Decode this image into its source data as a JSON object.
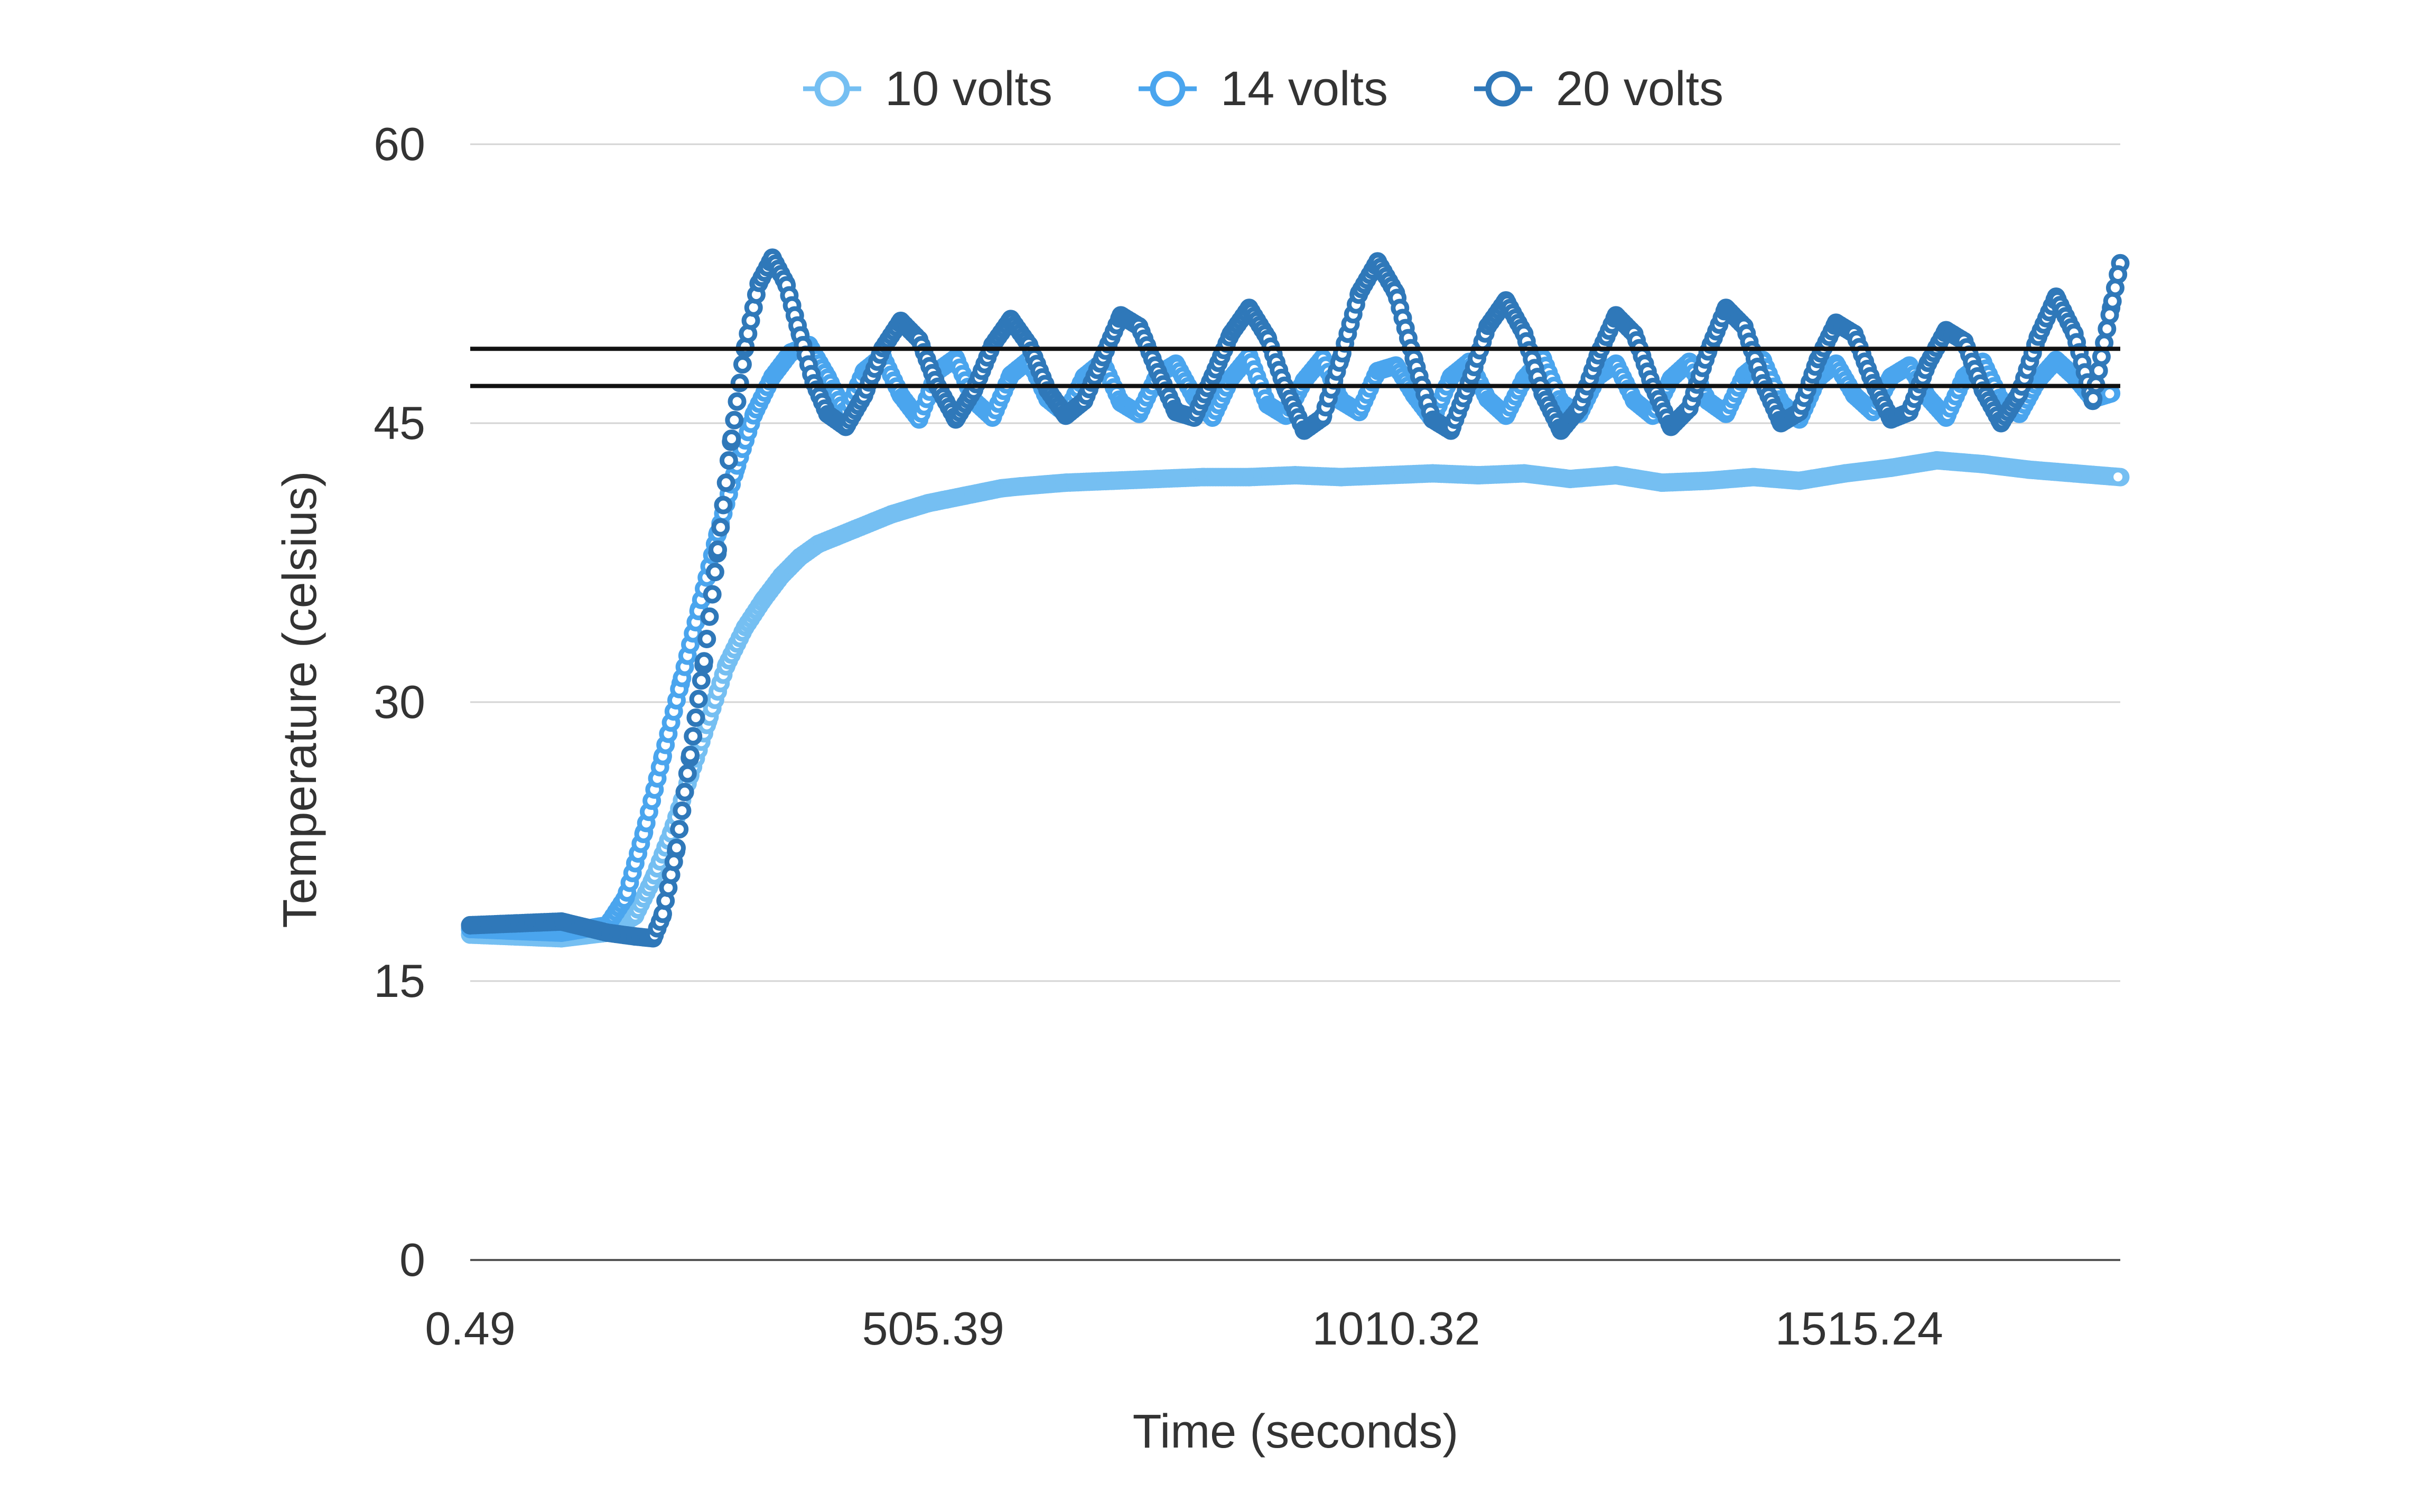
{
  "chart_data": {
    "type": "scatter",
    "title": "",
    "xlabel": "Time (seconds)",
    "ylabel": "Temperature (celsius)",
    "xlim": [
      0.49,
      1800
    ],
    "ylim": [
      0,
      60
    ],
    "y_ticks": [
      "0",
      "15",
      "30",
      "45",
      "60"
    ],
    "x_ticks": [
      {
        "label": "0.49",
        "value": 0.49
      },
      {
        "label": "505.39",
        "value": 505.39
      },
      {
        "label": "1010.32",
        "value": 1010.32
      },
      {
        "label": "1515.24",
        "value": 1515.24
      }
    ],
    "grid": true,
    "legend_position": "top",
    "reference_lines": [
      47,
      49
    ],
    "series": [
      {
        "name": "10 volts",
        "color": "#75bff2",
        "points": [
          [
            0.49,
            17.5
          ],
          [
            50,
            17.4
          ],
          [
            100,
            17.3
          ],
          [
            150,
            17.6
          ],
          [
            180,
            18.5
          ],
          [
            200,
            20.5
          ],
          [
            220,
            23
          ],
          [
            240,
            26
          ],
          [
            260,
            29
          ],
          [
            280,
            32
          ],
          [
            300,
            34
          ],
          [
            320,
            35.5
          ],
          [
            340,
            36.8
          ],
          [
            360,
            37.8
          ],
          [
            380,
            38.5
          ],
          [
            400,
            38.9
          ],
          [
            420,
            39.3
          ],
          [
            440,
            39.7
          ],
          [
            460,
            40.1
          ],
          [
            480,
            40.4
          ],
          [
            500,
            40.7
          ],
          [
            520,
            40.9
          ],
          [
            540,
            41.1
          ],
          [
            560,
            41.3
          ],
          [
            580,
            41.5
          ],
          [
            600,
            41.6
          ],
          [
            650,
            41.8
          ],
          [
            700,
            41.9
          ],
          [
            750,
            42
          ],
          [
            800,
            42.1
          ],
          [
            850,
            42.1
          ],
          [
            900,
            42.2
          ],
          [
            950,
            42.1
          ],
          [
            1000,
            42.2
          ],
          [
            1050,
            42.3
          ],
          [
            1100,
            42.2
          ],
          [
            1150,
            42.3
          ],
          [
            1200,
            42
          ],
          [
            1250,
            42.2
          ],
          [
            1300,
            41.8
          ],
          [
            1350,
            41.9
          ],
          [
            1400,
            42.1
          ],
          [
            1450,
            41.9
          ],
          [
            1500,
            42.3
          ],
          [
            1550,
            42.6
          ],
          [
            1600,
            43
          ],
          [
            1650,
            42.8
          ],
          [
            1700,
            42.5
          ],
          [
            1750,
            42.3
          ],
          [
            1800,
            42.1
          ]
        ]
      },
      {
        "name": "14 volts",
        "color": "#4aa5ee",
        "points": [
          [
            0.49,
            17.8
          ],
          [
            50,
            17.7
          ],
          [
            100,
            17.6
          ],
          [
            150,
            18
          ],
          [
            170,
            19.5
          ],
          [
            190,
            23
          ],
          [
            210,
            27
          ],
          [
            230,
            31
          ],
          [
            250,
            35
          ],
          [
            270,
            39
          ],
          [
            290,
            42.5
          ],
          [
            310,
            45.5
          ],
          [
            330,
            47.5
          ],
          [
            350,
            48.8
          ],
          [
            370,
            49.2
          ],
          [
            390,
            47.5
          ],
          [
            410,
            45.5
          ],
          [
            430,
            47.8
          ],
          [
            450,
            48.6
          ],
          [
            470,
            46.5
          ],
          [
            490,
            45.2
          ],
          [
            510,
            47.8
          ],
          [
            530,
            48.5
          ],
          [
            550,
            46.2
          ],
          [
            570,
            45.3
          ],
          [
            590,
            47.6
          ],
          [
            610,
            48.4
          ],
          [
            630,
            46.3
          ],
          [
            650,
            45.5
          ],
          [
            670,
            47.5
          ],
          [
            690,
            48.3
          ],
          [
            710,
            46.1
          ],
          [
            730,
            45.5
          ],
          [
            750,
            47.6
          ],
          [
            770,
            48.2
          ],
          [
            790,
            46.4
          ],
          [
            810,
            45.3
          ],
          [
            830,
            47.4
          ],
          [
            850,
            48.6
          ],
          [
            870,
            46
          ],
          [
            890,
            45.4
          ],
          [
            910,
            47.3
          ],
          [
            930,
            48.5
          ],
          [
            950,
            46.2
          ],
          [
            970,
            45.6
          ],
          [
            990,
            47.8
          ],
          [
            1010,
            48.1
          ],
          [
            1030,
            46.5
          ],
          [
            1050,
            45.2
          ],
          [
            1070,
            47.5
          ],
          [
            1090,
            48.3
          ],
          [
            1110,
            46.3
          ],
          [
            1130,
            45.4
          ],
          [
            1150,
            47.4
          ],
          [
            1170,
            48.5
          ],
          [
            1190,
            46.1
          ],
          [
            1210,
            45.5
          ],
          [
            1230,
            47.5
          ],
          [
            1250,
            48.2
          ],
          [
            1270,
            46.2
          ],
          [
            1290,
            45.4
          ],
          [
            1310,
            47.4
          ],
          [
            1330,
            48.3
          ],
          [
            1350,
            46.2
          ],
          [
            1370,
            45.5
          ],
          [
            1390,
            47.6
          ],
          [
            1410,
            48.4
          ],
          [
            1430,
            46.1
          ],
          [
            1450,
            45.2
          ],
          [
            1470,
            47.4
          ],
          [
            1490,
            48.2
          ],
          [
            1510,
            46.5
          ],
          [
            1530,
            45.6
          ],
          [
            1550,
            47.5
          ],
          [
            1570,
            48.1
          ],
          [
            1590,
            46.4
          ],
          [
            1610,
            45.3
          ],
          [
            1630,
            47.5
          ],
          [
            1650,
            48.3
          ],
          [
            1670,
            46.2
          ],
          [
            1690,
            45.5
          ],
          [
            1710,
            47.3
          ],
          [
            1730,
            48.4
          ],
          [
            1750,
            47.5
          ],
          [
            1770,
            46.3
          ],
          [
            1790,
            46.6
          ]
        ]
      },
      {
        "name": "20 volts",
        "color": "#2f78b9",
        "points": [
          [
            0.49,
            18
          ],
          [
            50,
            18.1
          ],
          [
            100,
            18.2
          ],
          [
            150,
            17.6
          ],
          [
            180,
            17.4
          ],
          [
            200,
            17.3
          ],
          [
            210,
            18.5
          ],
          [
            225,
            22
          ],
          [
            240,
            27
          ],
          [
            255,
            32
          ],
          [
            270,
            38
          ],
          [
            285,
            44
          ],
          [
            300,
            49
          ],
          [
            315,
            52.5
          ],
          [
            330,
            53.9
          ],
          [
            345,
            52.5
          ],
          [
            360,
            49.8
          ],
          [
            375,
            47.2
          ],
          [
            390,
            45.5
          ],
          [
            410,
            44.8
          ],
          [
            430,
            46.5
          ],
          [
            450,
            49
          ],
          [
            470,
            50.5
          ],
          [
            490,
            49.5
          ],
          [
            510,
            47
          ],
          [
            530,
            45.2
          ],
          [
            550,
            46.8
          ],
          [
            570,
            49.2
          ],
          [
            590,
            50.6
          ],
          [
            610,
            49.2
          ],
          [
            630,
            46.8
          ],
          [
            650,
            45.4
          ],
          [
            670,
            46.2
          ],
          [
            690,
            48.5
          ],
          [
            710,
            50.8
          ],
          [
            730,
            50.2
          ],
          [
            750,
            47.8
          ],
          [
            770,
            45.6
          ],
          [
            790,
            45.3
          ],
          [
            810,
            47.5
          ],
          [
            830,
            49.8
          ],
          [
            850,
            51.2
          ],
          [
            870,
            49.6
          ],
          [
            890,
            46.8
          ],
          [
            910,
            44.6
          ],
          [
            930,
            45.3
          ],
          [
            950,
            48.5
          ],
          [
            970,
            52
          ],
          [
            990,
            53.7
          ],
          [
            1010,
            52
          ],
          [
            1030,
            48.4
          ],
          [
            1050,
            45.2
          ],
          [
            1070,
            44.6
          ],
          [
            1090,
            47.2
          ],
          [
            1110,
            50.2
          ],
          [
            1130,
            51.6
          ],
          [
            1150,
            49.8
          ],
          [
            1170,
            46.6
          ],
          [
            1190,
            44.6
          ],
          [
            1210,
            45.8
          ],
          [
            1230,
            48.6
          ],
          [
            1250,
            50.8
          ],
          [
            1270,
            49.8
          ],
          [
            1290,
            47
          ],
          [
            1310,
            44.8
          ],
          [
            1330,
            45.8
          ],
          [
            1350,
            48.8
          ],
          [
            1370,
            51.2
          ],
          [
            1390,
            50.2
          ],
          [
            1410,
            47.2
          ],
          [
            1430,
            45
          ],
          [
            1450,
            45.6
          ],
          [
            1470,
            48.4
          ],
          [
            1490,
            50.4
          ],
          [
            1510,
            49.8
          ],
          [
            1530,
            47.2
          ],
          [
            1550,
            45.2
          ],
          [
            1570,
            45.6
          ],
          [
            1590,
            48.2
          ],
          [
            1610,
            50
          ],
          [
            1630,
            49.4
          ],
          [
            1650,
            46.8
          ],
          [
            1670,
            45
          ],
          [
            1690,
            46.6
          ],
          [
            1710,
            49.6
          ],
          [
            1730,
            51.8
          ],
          [
            1750,
            49.8
          ],
          [
            1770,
            46.2
          ],
          [
            1790,
            51.2
          ],
          [
            1800,
            53.6
          ]
        ]
      }
    ]
  }
}
